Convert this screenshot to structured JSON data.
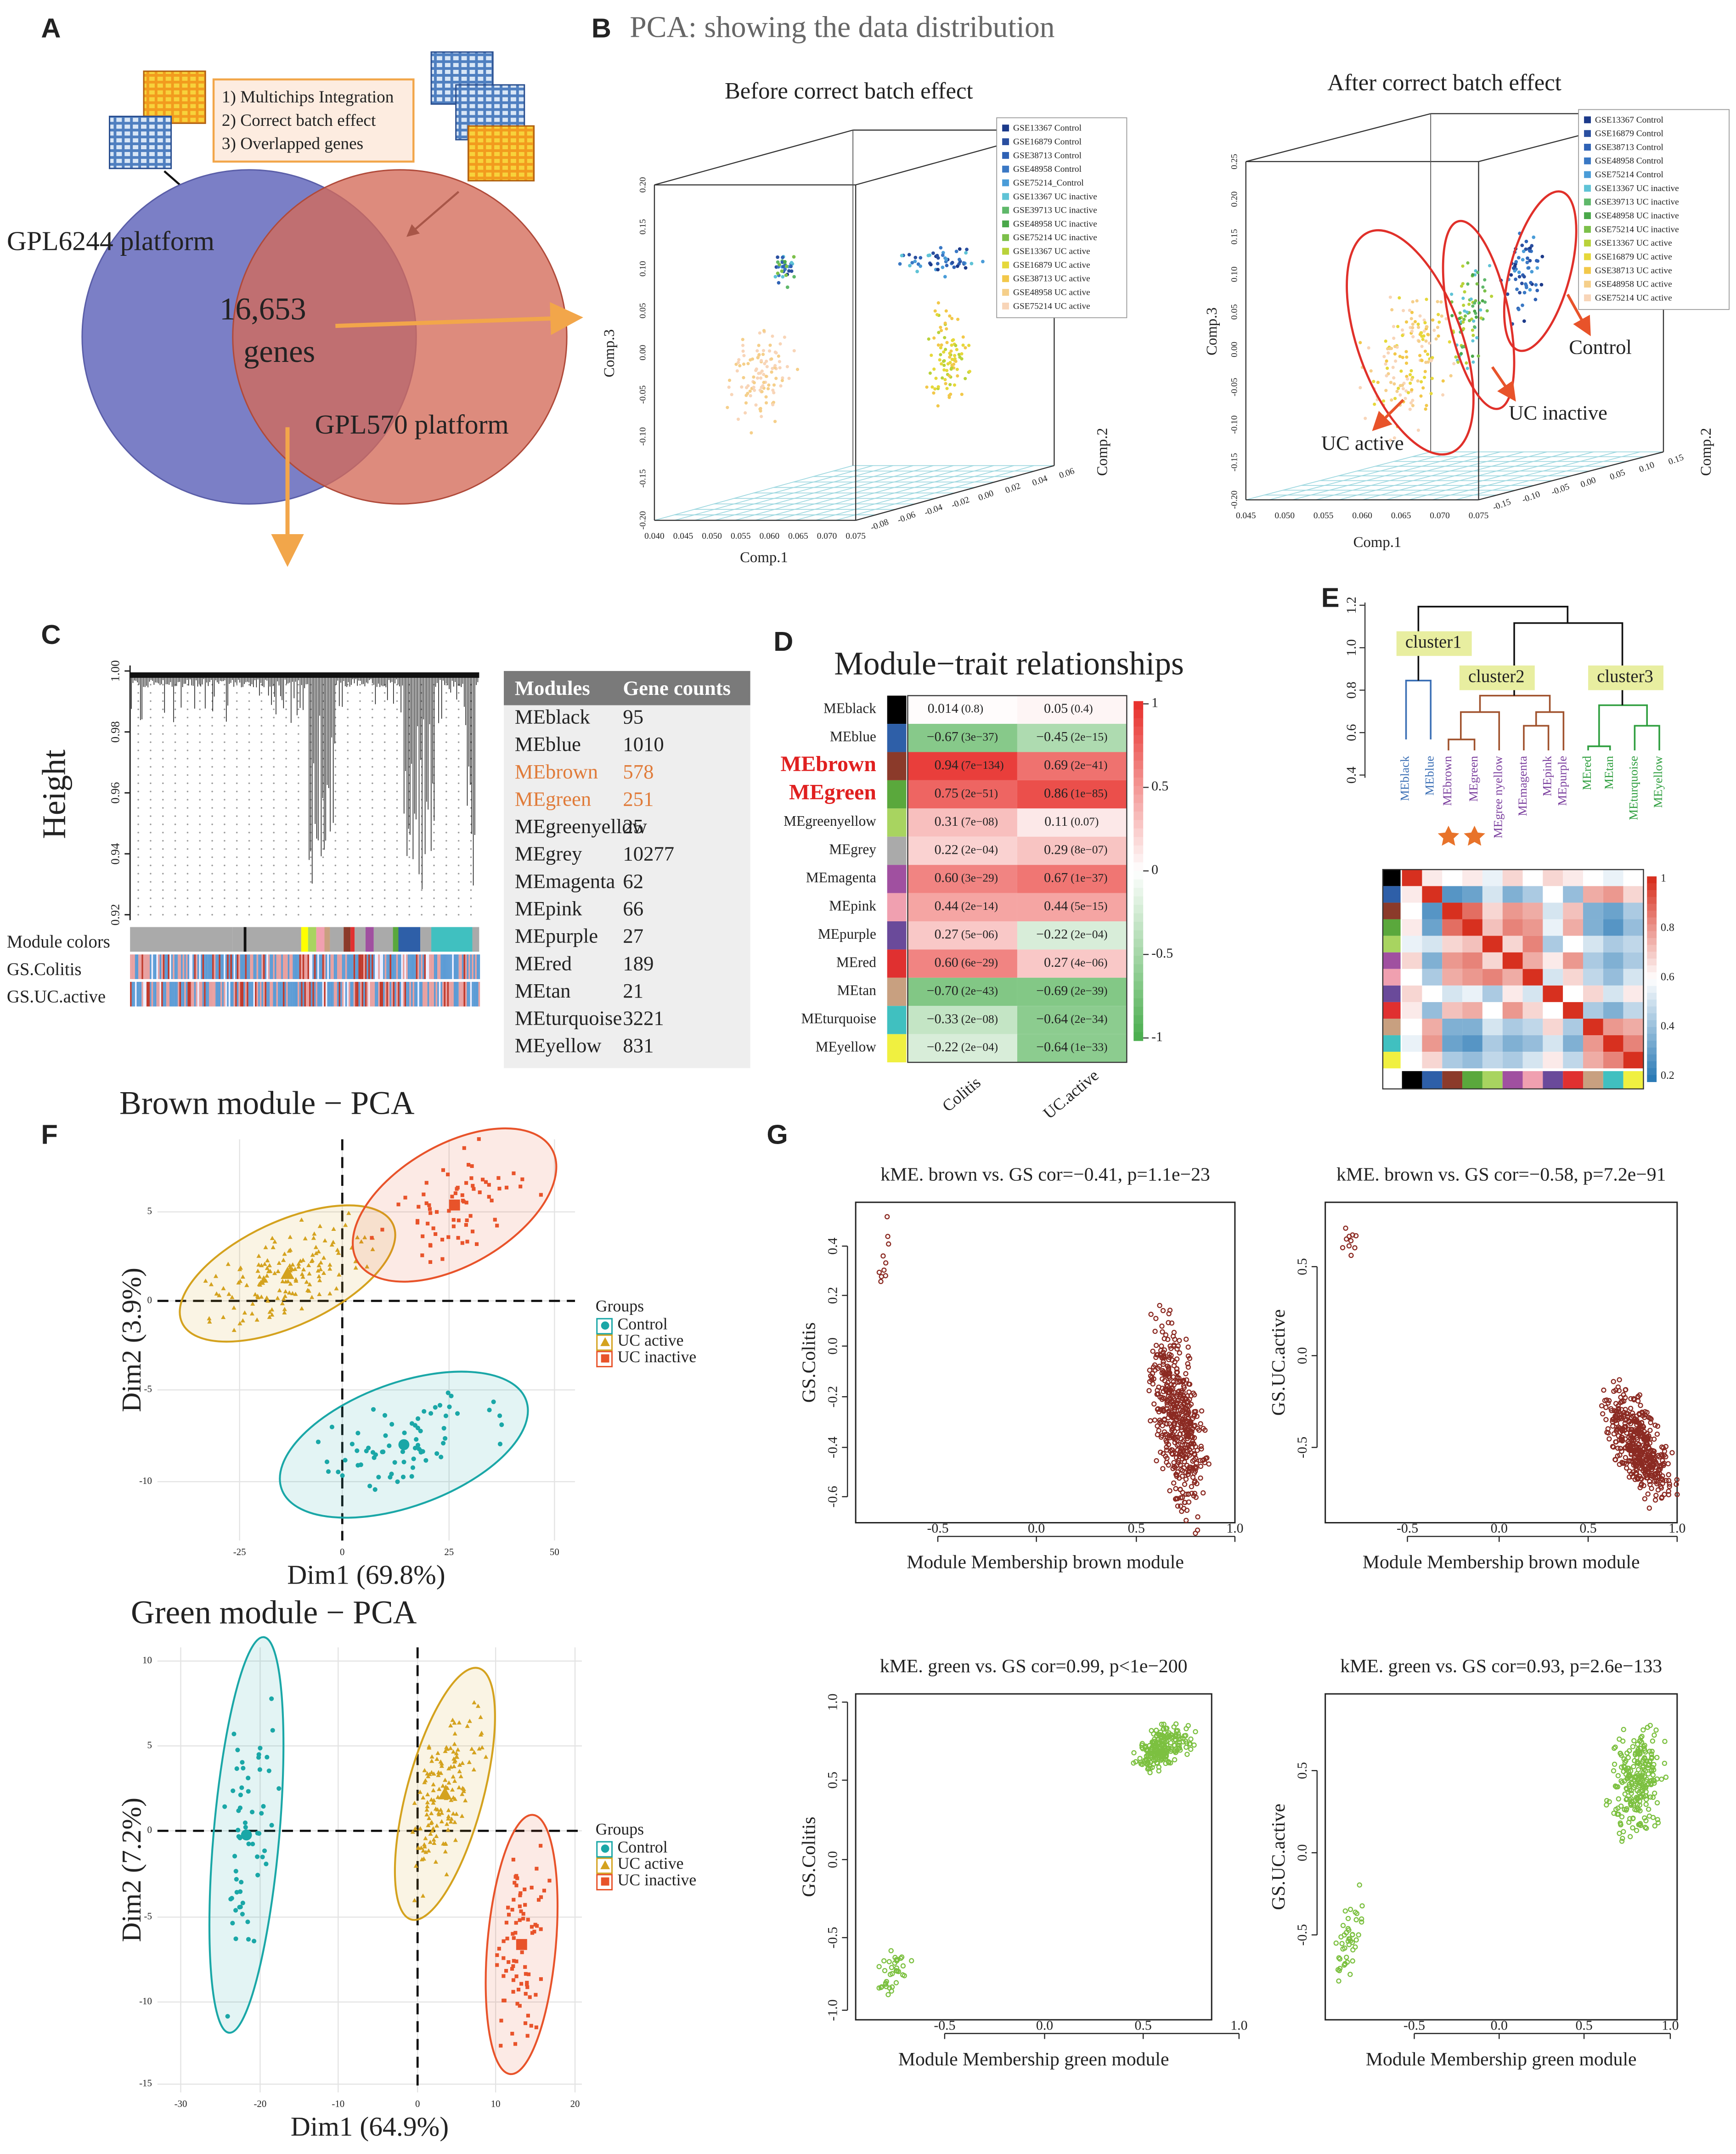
{
  "A": {
    "label": "A",
    "steps": [
      "1) Multichips Integration",
      "2) Correct batch effect",
      "3) Overlapped genes"
    ],
    "platform1": "GPL6244 platform",
    "platform2": "GPL570 platform",
    "overlap": "16,653",
    "overlap_unit": "genes"
  },
  "B": {
    "label": "B",
    "title": "PCA: showing the data distribution",
    "before": {
      "title": "Before correct batch effect",
      "xlabel": "Comp.1",
      "ylabel": "Comp.2",
      "zlabel": "Comp.3",
      "xticks": [
        "0.040",
        "0.045",
        "0.050",
        "0.055",
        "0.060",
        "0.065",
        "0.070",
        "0.075"
      ],
      "yticks": [
        "-0.08",
        "-0.06",
        "-0.04",
        "-0.02",
        "0.00",
        "0.02",
        "0.04",
        "0.06"
      ],
      "zticks": [
        "0.20",
        "0.15",
        "0.10",
        "0.05",
        "0.00",
        "-0.05",
        "-0.10",
        "-0.15",
        "-0.20"
      ],
      "legend": [
        {
          "name": "GSE13367 Control",
          "color": "#1c3a8a"
        },
        {
          "name": "GSE16879 Control",
          "color": "#2a4fa0"
        },
        {
          "name": "GSE38713 Control",
          "color": "#2f62b5"
        },
        {
          "name": "GSE48958 Control",
          "color": "#3a78c4"
        },
        {
          "name": "GSE75214_Control",
          "color": "#4a9cd8"
        },
        {
          "name": "GSE13367 UC inactive",
          "color": "#5fc3d6"
        },
        {
          "name": "GSE39713 UC inactive",
          "color": "#5fb86a"
        },
        {
          "name": "GSE48958 UC inactive",
          "color": "#4aa84a"
        },
        {
          "name": "GSE75214 UC inactive",
          "color": "#7cc04a"
        },
        {
          "name": "GSE13367 UC active",
          "color": "#b9d23a"
        },
        {
          "name": "GSE16879 UC active",
          "color": "#e6d83a"
        },
        {
          "name": "GSE38713 UC active",
          "color": "#f2c84a"
        },
        {
          "name": "GSE48958  UC active",
          "color": "#f5cf8a"
        },
        {
          "name": "GSE75214 UC active",
          "color": "#f8d5b8"
        }
      ]
    },
    "after": {
      "title": "After correct batch effect",
      "xlabel": "Comp.1",
      "ylabel": "Comp.2",
      "zlabel": "Comp.3",
      "xticks": [
        "0.045",
        "0.050",
        "0.055",
        "0.060",
        "0.065",
        "0.070",
        "0.075"
      ],
      "yticks": [
        "-0.15",
        "-0.10",
        "-0.05",
        "0.00",
        "0.05",
        "0.10",
        "0.15"
      ],
      "zticks": [
        "0.25",
        "0.20",
        "0.15",
        "0.10",
        "0.05",
        "0.00",
        "-0.05",
        "-0.10",
        "-0.15",
        "-0.20"
      ],
      "legend": [
        {
          "name": "GSE13367 Control",
          "color": "#1c3a8a"
        },
        {
          "name": "GSE16879 Control",
          "color": "#2a4fa0"
        },
        {
          "name": "GSE38713 Control",
          "color": "#2f62b5"
        },
        {
          "name": "GSE48958 Control",
          "color": "#3a78c4"
        },
        {
          "name": "GSE75214  Control",
          "color": "#4a9cd8"
        },
        {
          "name": "GSE13367 UC inactive",
          "color": "#5fc3d6"
        },
        {
          "name": "GSE39713 UC inactive",
          "color": "#5fb86a"
        },
        {
          "name": "GSE48958 UC inactive",
          "color": "#4aa84a"
        },
        {
          "name": "GSE75214 UC inactive",
          "color": "#7cc04a"
        },
        {
          "name": "GSE13367 UC active",
          "color": "#b9d23a"
        },
        {
          "name": "GSE16879 UC active",
          "color": "#e6d83a"
        },
        {
          "name": "GSE38713 UC active",
          "color": "#f2c84a"
        },
        {
          "name": "GSE48958  UC active",
          "color": "#f5cf8a"
        },
        {
          "name": "GSE75214 UC active",
          "color": "#f8d5b8"
        }
      ],
      "annotations": [
        "Control",
        "UC inactive",
        "UC active"
      ]
    }
  },
  "C": {
    "label": "C",
    "ylabel": "Height",
    "yticks": [
      "1.00",
      "0.98",
      "0.96",
      "0.94",
      "0.92"
    ],
    "row_labels": [
      "Module colors",
      "GS.Colitis",
      "GS.UC.active"
    ],
    "table": {
      "header": [
        "Modules",
        "Gene counts"
      ],
      "rows": [
        {
          "module": "MEblack",
          "count": "95"
        },
        {
          "module": "MEblue",
          "count": "1010"
        },
        {
          "module": "MEbrown",
          "count": "578",
          "highlight": true
        },
        {
          "module": "MEgreen",
          "count": "251",
          "highlight": true
        },
        {
          "module": "MEgreenyellow",
          "count": "25"
        },
        {
          "module": "MEgrey",
          "count": "10277"
        },
        {
          "module": "MEmagenta",
          "count": "62"
        },
        {
          "module": "MEpink",
          "count": "66"
        },
        {
          "module": "MEpurple",
          "count": "27"
        },
        {
          "module": "MEred",
          "count": "189"
        },
        {
          "module": "MEtan",
          "count": "21"
        },
        {
          "module": "MEturquoise",
          "count": "3221"
        },
        {
          "module": "MEyellow",
          "count": "831"
        }
      ]
    }
  },
  "D": {
    "label": "D",
    "title": "Module−trait relationships",
    "columns": [
      "Colitis",
      "UC.active"
    ],
    "rows": [
      {
        "name": "MEblack",
        "color": "#000000",
        "cells": [
          [
            "0.014",
            "(0.8)"
          ],
          [
            "0.05",
            "(0.4)"
          ]
        ]
      },
      {
        "name": "MEblue",
        "color": "#2e5fa8",
        "cells": [
          [
            "−0.67",
            "(3e−37)"
          ],
          [
            "−0.45",
            "(2e−15)"
          ]
        ]
      },
      {
        "name": "MEbrown",
        "color": "#8b3a2a",
        "highlight": true,
        "cells": [
          [
            "0.94",
            "(7e−134)"
          ],
          [
            "0.69",
            "(2e−41)"
          ]
        ]
      },
      {
        "name": "MEgreen",
        "color": "#5aa83c",
        "highlight": true,
        "cells": [
          [
            "0.75",
            "(2e−51)"
          ],
          [
            "0.86",
            "(1e−85)"
          ]
        ]
      },
      {
        "name": "MEgreenyellow",
        "color": "#a8d460",
        "cells": [
          [
            "0.31",
            "(7e−08)"
          ],
          [
            "0.11",
            "(0.07)"
          ]
        ]
      },
      {
        "name": "MEgrey",
        "color": "#aaaaaa",
        "cells": [
          [
            "0.22",
            "(2e−04)"
          ],
          [
            "0.29",
            "(8e−07)"
          ]
        ]
      },
      {
        "name": "MEmagenta",
        "color": "#a050a0",
        "cells": [
          [
            "0.60",
            "(3e−29)"
          ],
          [
            "0.67",
            "(1e−37)"
          ]
        ]
      },
      {
        "name": "MEpink",
        "color": "#f0a0b0",
        "cells": [
          [
            "0.44",
            "(2e−14)"
          ],
          [
            "0.44",
            "(5e−15)"
          ]
        ]
      },
      {
        "name": "MEpurple",
        "color": "#6a4a9a",
        "cells": [
          [
            "0.27",
            "(5e−06)"
          ],
          [
            "−0.22",
            "(2e−04)"
          ]
        ]
      },
      {
        "name": "MEred",
        "color": "#e03030",
        "cells": [
          [
            "0.60",
            "(6e−29)"
          ],
          [
            "0.27",
            "(4e−06)"
          ]
        ]
      },
      {
        "name": "MEtan",
        "color": "#c8a080",
        "cells": [
          [
            "−0.70",
            "(2e−43)"
          ],
          [
            "−0.69",
            "(2e−39)"
          ]
        ]
      },
      {
        "name": "MEturquoise",
        "color": "#40c0c0",
        "cells": [
          [
            "−0.33",
            "(2e−08)"
          ],
          [
            "−0.64",
            "(2e−34)"
          ]
        ]
      },
      {
        "name": "MEyellow",
        "color": "#f0f040",
        "cells": [
          [
            "−0.22",
            "(2e−04)"
          ],
          [
            "−0.64",
            "(1e−33)"
          ]
        ]
      }
    ],
    "colorbar": [
      "1",
      "0.5",
      "0",
      "-0.5",
      "-1"
    ]
  },
  "E": {
    "label": "E",
    "yticks": [
      "1.2",
      "1.0",
      "0.8",
      "0.6",
      "0.4"
    ],
    "clusters": [
      "cluster1",
      "cluster2",
      "cluster3"
    ],
    "leaves": [
      "MEblack",
      "MEblue",
      "MEbrown",
      "MEgreen",
      "MEgree nyellow",
      "MEmagenta",
      "MEpink",
      "MEpurple",
      "MEred",
      "MEtan",
      "MEturquoise",
      "MEyellow"
    ],
    "colorbar": [
      "1",
      "0.8",
      "0.6",
      "0.4",
      "0.2"
    ],
    "matrix": [
      [
        1,
        0.55,
        0.5,
        0.55,
        0.45,
        0.6,
        0.5,
        0.6,
        0.55,
        0.5,
        0.45,
        0.5
      ],
      [
        0.55,
        1,
        0.1,
        0.15,
        0.4,
        0.2,
        0.3,
        0.5,
        0.25,
        0.7,
        0.75,
        0.6
      ],
      [
        0.5,
        0.1,
        1,
        0.85,
        0.6,
        0.75,
        0.7,
        0.4,
        0.65,
        0.2,
        0.15,
        0.3
      ],
      [
        0.55,
        0.15,
        0.85,
        1,
        0.65,
        0.8,
        0.75,
        0.45,
        0.7,
        0.2,
        0.1,
        0.25
      ],
      [
        0.45,
        0.4,
        0.6,
        0.65,
        1,
        0.6,
        0.8,
        0.3,
        0.5,
        0.4,
        0.3,
        0.35
      ],
      [
        0.6,
        0.2,
        0.75,
        0.8,
        0.6,
        1,
        0.7,
        0.55,
        0.75,
        0.3,
        0.2,
        0.3
      ],
      [
        0.5,
        0.3,
        0.7,
        0.75,
        0.8,
        0.7,
        1,
        0.4,
        0.6,
        0.35,
        0.25,
        0.4
      ],
      [
        0.6,
        0.5,
        0.4,
        0.45,
        0.3,
        0.55,
        0.4,
        1,
        0.5,
        0.6,
        0.4,
        0.55
      ],
      [
        0.55,
        0.25,
        0.65,
        0.7,
        0.5,
        0.75,
        0.6,
        0.5,
        1,
        0.3,
        0.2,
        0.35
      ],
      [
        0.5,
        0.7,
        0.2,
        0.2,
        0.4,
        0.3,
        0.35,
        0.6,
        0.3,
        1,
        0.75,
        0.7
      ],
      [
        0.45,
        0.75,
        0.15,
        0.1,
        0.3,
        0.2,
        0.25,
        0.4,
        0.2,
        0.75,
        1,
        0.8
      ],
      [
        0.5,
        0.6,
        0.3,
        0.25,
        0.35,
        0.3,
        0.4,
        0.55,
        0.35,
        0.7,
        0.8,
        1
      ]
    ]
  },
  "F": {
    "label": "F",
    "legend_title": "Groups",
    "groups": [
      {
        "name": "Control",
        "color": "#1aa7a7"
      },
      {
        "name": "UC active",
        "color": "#d4a21e"
      },
      {
        "name": "UC inactive",
        "color": "#e8532a"
      }
    ],
    "plots": [
      {
        "title": "Brown module − PCA",
        "xlabel": "Dim1 (69.8%)",
        "ylabel": "Dim2 (3.9%)",
        "xticks": [
          "-25",
          "0",
          "25",
          "50"
        ],
        "yticks": [
          "5",
          "0",
          "-5",
          "-10"
        ]
      },
      {
        "title": "Green module − PCA",
        "xlabel": "Dim1 (64.9%)",
        "ylabel": "Dim2 (7.2%)",
        "xticks": [
          "-30",
          "-20",
          "-10",
          "0",
          "10",
          "20"
        ],
        "yticks": [
          "10",
          "5",
          "0",
          "-5",
          "-10",
          "-15"
        ]
      }
    ]
  },
  "G": {
    "label": "G",
    "plots": [
      {
        "title": "kME. brown vs. GS cor=−0.41, p=1.1e−23",
        "xlabel": "Module Membership  brown module",
        "ylabel": "GS.Colitis",
        "xticks": [
          "-0.5",
          "0.0",
          "0.5",
          "1.0"
        ],
        "yticks": [
          "0.4",
          "0.2",
          "0.0",
          "-0.2",
          "-0.4",
          "-0.6"
        ],
        "color": "#8b2a22"
      },
      {
        "title": "kME. brown vs. GS cor=−0.58, p=7.2e−91",
        "xlabel": "Module Membership  brown module",
        "ylabel": "GS.UC.active",
        "xticks": [
          "-0.5",
          "0.0",
          "0.5",
          "1.0"
        ],
        "yticks": [
          "0.5",
          "0.0",
          "-0.5"
        ],
        "color": "#8b2a22"
      },
      {
        "title": "kME. green vs. GS cor=0.99, p<1e−200",
        "xlabel": "Module Membership  green module",
        "ylabel": "GS.Colitis",
        "xticks": [
          "-0.5",
          "0.0",
          "0.5",
          "1.0"
        ],
        "yticks": [
          "1.0",
          "0.5",
          "0.0",
          "-0.5",
          "-1.0"
        ],
        "color": "#7cc040"
      },
      {
        "title": "kME. green vs. GS cor=0.93, p=2.6e−133",
        "xlabel": "Module Membership  green module",
        "ylabel": "GS.UC.active",
        "xticks": [
          "-0.5",
          "0.0",
          "0.5",
          "1.0"
        ],
        "yticks": [
          "0.5",
          "0.0",
          "-0.5"
        ],
        "color": "#7cc040"
      }
    ]
  }
}
